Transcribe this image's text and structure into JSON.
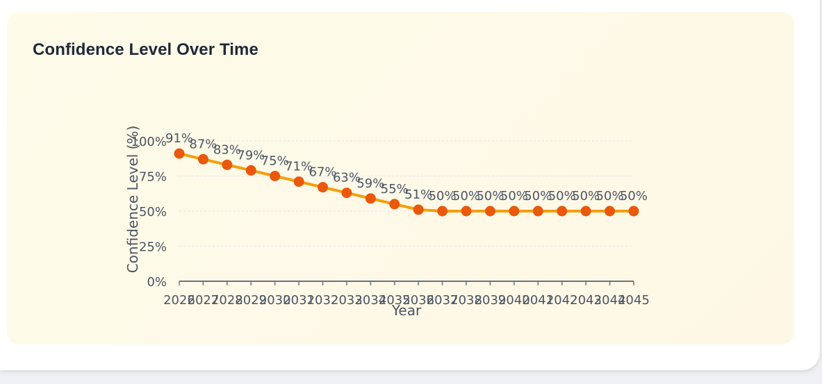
{
  "colors": {
    "line": "#f59e0b",
    "marker": "#ea580c",
    "axis": "#6b7280",
    "grid": "#e5e7eb",
    "text": "#4b5563",
    "title": "#1f2937"
  },
  "chart_data": {
    "type": "line",
    "title": "Confidence Level Over Time",
    "xlabel": "Year",
    "ylabel": "Confidence Level (%)",
    "x": [
      2026,
      2027,
      2028,
      2029,
      2030,
      2031,
      2032,
      2033,
      2034,
      2035,
      2036,
      2037,
      2038,
      2039,
      2040,
      2041,
      2042,
      2043,
      2044,
      2045
    ],
    "series": [
      {
        "values": [
          91,
          87,
          83,
          79,
          75,
          71,
          67,
          63,
          59,
          55,
          51,
          50,
          50,
          50,
          50,
          50,
          50,
          50,
          50,
          50
        ]
      }
    ],
    "data_labels": [
      "91%",
      "87%",
      "83%",
      "79%",
      "75%",
      "71%",
      "67%",
      "63%",
      "59%",
      "55%",
      "51%",
      "50%",
      "50%",
      "50%",
      "50%",
      "50%",
      "50%",
      "50%",
      "50%",
      "50%"
    ],
    "y_ticks": [
      0,
      25,
      50,
      75,
      100
    ],
    "y_tick_labels": [
      "0%",
      "25%",
      "50%",
      "75%",
      "100%"
    ],
    "ylim": [
      0,
      100
    ],
    "grid": true,
    "legend": "none"
  }
}
